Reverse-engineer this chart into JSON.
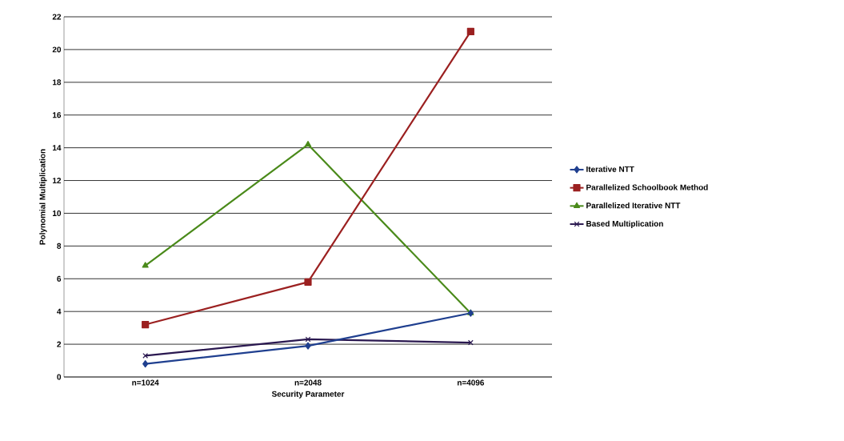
{
  "chart_data": {
    "type": "line",
    "xlabel": "Security Parameter",
    "ylabel": "Polynomial Multiplication",
    "categories": [
      "n=1024",
      "n=2048",
      "n=4096"
    ],
    "series": [
      {
        "name": "Iterative NTT",
        "color": "#1f3f8f",
        "marker": "diamond",
        "values": [
          0.8,
          1.9,
          3.9
        ]
      },
      {
        "name": "Parallelized Schoolbook Method",
        "color": "#9b2020",
        "marker": "square",
        "values": [
          3.2,
          5.8,
          21.1
        ]
      },
      {
        "name": "Parallelized Iterative NTT",
        "color": "#4a8a1a",
        "marker": "triangle",
        "values": [
          6.8,
          14.2,
          3.9
        ]
      },
      {
        "name": "Based Multiplication",
        "color": "#2a1850",
        "marker": "cross",
        "values": [
          1.3,
          2.3,
          2.1
        ]
      }
    ],
    "ylim": [
      0,
      22
    ],
    "yticks": [
      0,
      2,
      4,
      6,
      8,
      10,
      12,
      14,
      16,
      18,
      20,
      22
    ],
    "grid": "y",
    "legend": "right",
    "line_style": "solid"
  }
}
